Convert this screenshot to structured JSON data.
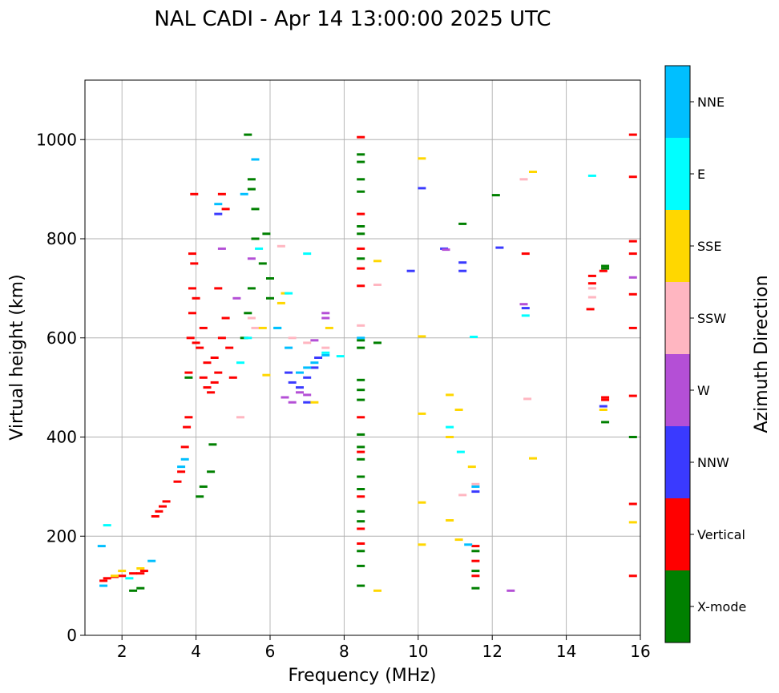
{
  "chart_data": {
    "type": "scatter",
    "title": "NAL CADI - Apr 14 13:00:00 2025 UTC",
    "xlabel": "Frequency (MHz)",
    "ylabel": "Virtual height (km)",
    "xlim": [
      1,
      16
    ],
    "ylim": [
      0,
      1120
    ],
    "xticks": [
      2,
      4,
      6,
      8,
      10,
      12,
      14,
      16
    ],
    "yticks": [
      0,
      200,
      400,
      600,
      800,
      1000
    ],
    "grid": true,
    "colorbar": {
      "title": "Azimuth Direction",
      "categories": [
        {
          "name": "X-mode",
          "color": "#008000"
        },
        {
          "name": "Vertical",
          "color": "#ff0000"
        },
        {
          "name": "NNW",
          "color": "#3a3aff"
        },
        {
          "name": "W",
          "color": "#b44fd6"
        },
        {
          "name": "SSW",
          "color": "#ffb6c1"
        },
        {
          "name": "SSE",
          "color": "#ffd700"
        },
        {
          "name": "E",
          "color": "#00ffff"
        },
        {
          "name": "NNE",
          "color": "#00bfff"
        }
      ]
    },
    "series": [
      {
        "name": "Vertical",
        "points": [
          [
            1.5,
            110
          ],
          [
            1.6,
            115
          ],
          [
            1.8,
            118
          ],
          [
            2.0,
            120
          ],
          [
            2.3,
            125
          ],
          [
            2.5,
            125
          ],
          [
            2.6,
            130
          ],
          [
            2.9,
            240
          ],
          [
            3.0,
            250
          ],
          [
            3.1,
            260
          ],
          [
            3.2,
            270
          ],
          [
            3.5,
            310
          ],
          [
            3.6,
            330
          ],
          [
            3.7,
            380
          ],
          [
            3.75,
            420
          ],
          [
            3.8,
            440
          ],
          [
            3.8,
            530
          ],
          [
            3.85,
            600
          ],
          [
            3.9,
            650
          ],
          [
            3.9,
            700
          ],
          [
            3.95,
            750
          ],
          [
            3.9,
            770
          ],
          [
            4.0,
            680
          ],
          [
            4.1,
            580
          ],
          [
            4.2,
            520
          ],
          [
            4.3,
            500
          ],
          [
            4.4,
            490
          ],
          [
            4.5,
            510
          ],
          [
            4.6,
            530
          ],
          [
            4.7,
            600
          ],
          [
            4.8,
            640
          ],
          [
            4.6,
            700
          ],
          [
            4.5,
            560
          ],
          [
            4.3,
            550
          ],
          [
            4.2,
            620
          ],
          [
            4.0,
            590
          ],
          [
            3.95,
            890
          ],
          [
            4.8,
            860
          ],
          [
            4.7,
            890
          ],
          [
            5.0,
            520
          ],
          [
            4.9,
            580
          ],
          [
            8.45,
            1005
          ],
          [
            8.45,
            850
          ],
          [
            8.45,
            780
          ],
          [
            8.45,
            740
          ],
          [
            8.45,
            705
          ],
          [
            8.45,
            440
          ],
          [
            8.45,
            370
          ],
          [
            8.45,
            280
          ],
          [
            8.45,
            215
          ],
          [
            8.45,
            185
          ],
          [
            11.55,
            180
          ],
          [
            11.55,
            150
          ],
          [
            11.55,
            120
          ],
          [
            12.9,
            770
          ],
          [
            14.7,
            725
          ],
          [
            14.7,
            710
          ],
          [
            14.65,
            658
          ],
          [
            15.0,
            735
          ],
          [
            15.05,
            480
          ],
          [
            15.05,
            475
          ],
          [
            15.8,
            1010
          ],
          [
            15.8,
            925
          ],
          [
            15.8,
            795
          ],
          [
            15.8,
            770
          ],
          [
            15.8,
            688
          ],
          [
            15.8,
            620
          ],
          [
            15.8,
            483
          ],
          [
            15.8,
            265
          ],
          [
            15.8,
            120
          ]
        ]
      },
      {
        "name": "X-mode",
        "points": [
          [
            2.3,
            90
          ],
          [
            2.5,
            95
          ],
          [
            3.8,
            520
          ],
          [
            4.1,
            280
          ],
          [
            4.2,
            300
          ],
          [
            4.4,
            330
          ],
          [
            4.45,
            385
          ],
          [
            5.3,
            600
          ],
          [
            5.4,
            650
          ],
          [
            5.5,
            700
          ],
          [
            5.6,
            800
          ],
          [
            5.6,
            860
          ],
          [
            5.5,
            900
          ],
          [
            5.5,
            920
          ],
          [
            5.4,
            1010
          ],
          [
            5.8,
            750
          ],
          [
            6.0,
            720
          ],
          [
            6.0,
            680
          ],
          [
            5.9,
            810
          ],
          [
            8.45,
            970
          ],
          [
            8.45,
            955
          ],
          [
            8.45,
            920
          ],
          [
            8.45,
            895
          ],
          [
            8.45,
            825
          ],
          [
            8.45,
            810
          ],
          [
            8.45,
            760
          ],
          [
            8.45,
            595
          ],
          [
            8.45,
            580
          ],
          [
            8.45,
            515
          ],
          [
            8.45,
            495
          ],
          [
            8.45,
            475
          ],
          [
            8.45,
            405
          ],
          [
            8.45,
            380
          ],
          [
            8.45,
            355
          ],
          [
            8.45,
            320
          ],
          [
            8.45,
            295
          ],
          [
            8.45,
            250
          ],
          [
            8.45,
            230
          ],
          [
            8.45,
            170
          ],
          [
            8.45,
            140
          ],
          [
            8.45,
            100
          ],
          [
            8.9,
            590
          ],
          [
            11.2,
            830
          ],
          [
            12.1,
            888
          ],
          [
            11.55,
            170
          ],
          [
            11.55,
            130
          ],
          [
            11.55,
            95
          ],
          [
            15.05,
            745
          ],
          [
            15.05,
            740
          ],
          [
            15.05,
            430
          ],
          [
            15.8,
            400
          ]
        ]
      },
      {
        "name": "NNW",
        "points": [
          [
            4.6,
            850
          ],
          [
            6.5,
            530
          ],
          [
            6.6,
            510
          ],
          [
            6.8,
            500
          ],
          [
            7.0,
            520
          ],
          [
            7.2,
            540
          ],
          [
            7.3,
            560
          ],
          [
            7.0,
            470
          ],
          [
            9.8,
            735
          ],
          [
            10.1,
            902
          ],
          [
            10.7,
            780
          ],
          [
            11.2,
            752
          ],
          [
            11.2,
            735
          ],
          [
            11.55,
            290
          ],
          [
            12.2,
            782
          ],
          [
            12.9,
            660
          ],
          [
            15.0,
            462
          ]
        ]
      },
      {
        "name": "W",
        "points": [
          [
            4.7,
            780
          ],
          [
            5.1,
            680
          ],
          [
            5.5,
            760
          ],
          [
            6.4,
            480
          ],
          [
            6.6,
            470
          ],
          [
            6.8,
            490
          ],
          [
            7.0,
            485
          ],
          [
            7.2,
            595
          ],
          [
            7.5,
            650
          ],
          [
            7.5,
            640
          ],
          [
            10.75,
            778
          ],
          [
            12.85,
            668
          ],
          [
            12.5,
            90
          ],
          [
            15.8,
            722
          ]
        ]
      },
      {
        "name": "SSW",
        "points": [
          [
            5.5,
            640
          ],
          [
            5.6,
            620
          ],
          [
            5.2,
            440
          ],
          [
            6.3,
            785
          ],
          [
            6.6,
            600
          ],
          [
            7.0,
            590
          ],
          [
            7.5,
            580
          ],
          [
            8.45,
            625
          ],
          [
            8.9,
            707
          ],
          [
            11.2,
            283
          ],
          [
            11.55,
            305
          ],
          [
            12.85,
            920
          ],
          [
            12.95,
            477
          ],
          [
            14.7,
            700
          ],
          [
            14.7,
            682
          ]
        ]
      },
      {
        "name": "SSE",
        "points": [
          [
            1.8,
            120
          ],
          [
            2.0,
            130
          ],
          [
            2.5,
            135
          ],
          [
            5.8,
            620
          ],
          [
            5.9,
            525
          ],
          [
            6.3,
            670
          ],
          [
            6.4,
            690
          ],
          [
            7.2,
            470
          ],
          [
            7.6,
            620
          ],
          [
            8.9,
            755
          ],
          [
            8.9,
            90
          ],
          [
            10.1,
            962
          ],
          [
            10.1,
            603
          ],
          [
            10.1,
            447
          ],
          [
            10.85,
            485
          ],
          [
            11.1,
            455
          ],
          [
            10.85,
            400
          ],
          [
            11.45,
            340
          ],
          [
            10.85,
            232
          ],
          [
            11.1,
            193
          ],
          [
            13.1,
            935
          ],
          [
            13.1,
            357
          ],
          [
            15.0,
            455
          ],
          [
            15.8,
            228
          ],
          [
            10.1,
            268
          ],
          [
            10.1,
            183
          ]
        ]
      },
      {
        "name": "E",
        "points": [
          [
            1.6,
            222
          ],
          [
            2.2,
            115
          ],
          [
            5.2,
            550
          ],
          [
            5.4,
            600
          ],
          [
            5.7,
            780
          ],
          [
            6.2,
            620
          ],
          [
            6.5,
            690
          ],
          [
            7.0,
            770
          ],
          [
            7.5,
            570
          ],
          [
            7.9,
            563
          ],
          [
            10.85,
            420
          ],
          [
            11.15,
            370
          ],
          [
            11.5,
            602
          ],
          [
            12.9,
            645
          ],
          [
            14.7,
            927
          ]
        ]
      },
      {
        "name": "NNE",
        "points": [
          [
            1.45,
            180
          ],
          [
            1.5,
            100
          ],
          [
            2.8,
            150
          ],
          [
            3.6,
            340
          ],
          [
            3.7,
            355
          ],
          [
            4.6,
            870
          ],
          [
            5.3,
            890
          ],
          [
            5.6,
            960
          ],
          [
            6.2,
            620
          ],
          [
            6.5,
            580
          ],
          [
            6.8,
            530
          ],
          [
            7.0,
            540
          ],
          [
            7.2,
            550
          ],
          [
            7.5,
            565
          ],
          [
            8.45,
            600
          ],
          [
            11.35,
            183
          ],
          [
            11.55,
            300
          ]
        ]
      }
    ]
  }
}
